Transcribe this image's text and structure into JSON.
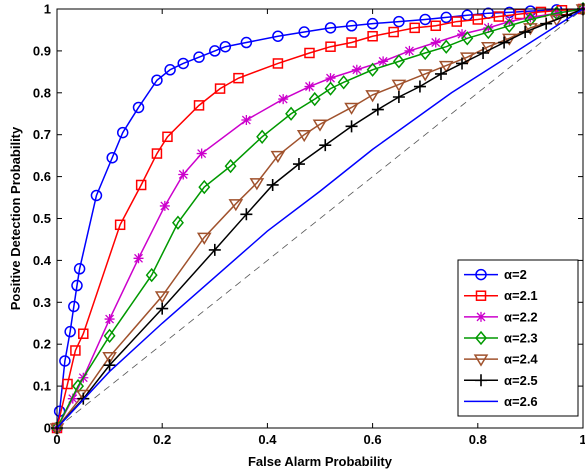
{
  "chart_data": {
    "type": "line",
    "title": "",
    "xlabel": "False Alarm Probability",
    "ylabel": "Positive Detection Probability",
    "xlim": [
      0,
      1
    ],
    "ylim": [
      0,
      1
    ],
    "x_ticks": [
      "0",
      "0.2",
      "0.4",
      "0.6",
      "0.8",
      "1"
    ],
    "y_ticks": [
      "0",
      "0.1",
      "0.2",
      "0.3",
      "0.4",
      "0.5",
      "0.6",
      "0.7",
      "0.8",
      "0.9",
      "1"
    ],
    "grid": false,
    "legend_position": "bottom-right",
    "reference_line": {
      "style": "dashed",
      "color": "#555555",
      "points": [
        [
          0,
          0
        ],
        [
          1,
          1
        ]
      ]
    },
    "series": [
      {
        "name": "α=2",
        "color": "#0000ff",
        "marker": "circle",
        "points": [
          [
            0,
            0
          ],
          [
            0.005,
            0.04
          ],
          [
            0.015,
            0.16
          ],
          [
            0.025,
            0.23
          ],
          [
            0.032,
            0.29
          ],
          [
            0.038,
            0.34
          ],
          [
            0.043,
            0.38
          ],
          [
            0.075,
            0.555
          ],
          [
            0.105,
            0.645
          ],
          [
            0.125,
            0.705
          ],
          [
            0.155,
            0.765
          ],
          [
            0.19,
            0.83
          ],
          [
            0.215,
            0.855
          ],
          [
            0.24,
            0.87
          ],
          [
            0.27,
            0.885
          ],
          [
            0.3,
            0.9
          ],
          [
            0.32,
            0.91
          ],
          [
            0.36,
            0.92
          ],
          [
            0.42,
            0.935
          ],
          [
            0.47,
            0.945
          ],
          [
            0.52,
            0.955
          ],
          [
            0.56,
            0.96
          ],
          [
            0.6,
            0.965
          ],
          [
            0.65,
            0.97
          ],
          [
            0.7,
            0.975
          ],
          [
            0.74,
            0.98
          ],
          [
            0.78,
            0.985
          ],
          [
            0.82,
            0.99
          ],
          [
            0.86,
            0.992
          ],
          [
            0.9,
            0.995
          ],
          [
            0.95,
            0.998
          ],
          [
            1,
            1
          ]
        ]
      },
      {
        "name": "α=2.1",
        "color": "#ff0000",
        "marker": "square",
        "points": [
          [
            0,
            0
          ],
          [
            0.02,
            0.105
          ],
          [
            0.035,
            0.185
          ],
          [
            0.05,
            0.225
          ],
          [
            0.12,
            0.485
          ],
          [
            0.16,
            0.58
          ],
          [
            0.19,
            0.655
          ],
          [
            0.21,
            0.695
          ],
          [
            0.27,
            0.77
          ],
          [
            0.31,
            0.81
          ],
          [
            0.345,
            0.835
          ],
          [
            0.42,
            0.87
          ],
          [
            0.48,
            0.895
          ],
          [
            0.52,
            0.91
          ],
          [
            0.56,
            0.92
          ],
          [
            0.6,
            0.935
          ],
          [
            0.64,
            0.945
          ],
          [
            0.68,
            0.955
          ],
          [
            0.72,
            0.96
          ],
          [
            0.76,
            0.97
          ],
          [
            0.8,
            0.975
          ],
          [
            0.84,
            0.982
          ],
          [
            0.88,
            0.988
          ],
          [
            0.92,
            0.993
          ],
          [
            0.96,
            0.997
          ],
          [
            1,
            1
          ]
        ]
      },
      {
        "name": "α=2.2",
        "color": "#cc00cc",
        "marker": "star",
        "points": [
          [
            0,
            0
          ],
          [
            0.03,
            0.07
          ],
          [
            0.05,
            0.12
          ],
          [
            0.1,
            0.26
          ],
          [
            0.155,
            0.405
          ],
          [
            0.205,
            0.53
          ],
          [
            0.24,
            0.605
          ],
          [
            0.275,
            0.655
          ],
          [
            0.36,
            0.735
          ],
          [
            0.43,
            0.785
          ],
          [
            0.48,
            0.815
          ],
          [
            0.52,
            0.835
          ],
          [
            0.57,
            0.855
          ],
          [
            0.62,
            0.875
          ],
          [
            0.67,
            0.9
          ],
          [
            0.72,
            0.92
          ],
          [
            0.77,
            0.94
          ],
          [
            0.82,
            0.955
          ],
          [
            0.86,
            0.97
          ],
          [
            0.9,
            0.98
          ],
          [
            0.95,
            0.99
          ],
          [
            1,
            1
          ]
        ]
      },
      {
        "name": "α=2.3",
        "color": "#009900",
        "marker": "diamond",
        "points": [
          [
            0,
            0
          ],
          [
            0.04,
            0.1
          ],
          [
            0.1,
            0.22
          ],
          [
            0.18,
            0.365
          ],
          [
            0.23,
            0.49
          ],
          [
            0.28,
            0.575
          ],
          [
            0.33,
            0.625
          ],
          [
            0.39,
            0.695
          ],
          [
            0.445,
            0.75
          ],
          [
            0.49,
            0.785
          ],
          [
            0.52,
            0.81
          ],
          [
            0.545,
            0.825
          ],
          [
            0.6,
            0.855
          ],
          [
            0.65,
            0.875
          ],
          [
            0.7,
            0.895
          ],
          [
            0.74,
            0.91
          ],
          [
            0.78,
            0.93
          ],
          [
            0.82,
            0.945
          ],
          [
            0.86,
            0.96
          ],
          [
            0.9,
            0.975
          ],
          [
            0.95,
            0.99
          ],
          [
            1,
            1
          ]
        ]
      },
      {
        "name": "α=2.4",
        "color": "#a0522d",
        "marker": "triangle-down",
        "points": [
          [
            0,
            0
          ],
          [
            0.05,
            0.08
          ],
          [
            0.1,
            0.17
          ],
          [
            0.2,
            0.315
          ],
          [
            0.28,
            0.455
          ],
          [
            0.34,
            0.535
          ],
          [
            0.38,
            0.585
          ],
          [
            0.42,
            0.65
          ],
          [
            0.47,
            0.7
          ],
          [
            0.5,
            0.725
          ],
          [
            0.56,
            0.765
          ],
          [
            0.6,
            0.795
          ],
          [
            0.65,
            0.82
          ],
          [
            0.7,
            0.845
          ],
          [
            0.74,
            0.865
          ],
          [
            0.78,
            0.885
          ],
          [
            0.82,
            0.91
          ],
          [
            0.86,
            0.93
          ],
          [
            0.9,
            0.955
          ],
          [
            0.95,
            0.975
          ],
          [
            1,
            1
          ]
        ]
      },
      {
        "name": "α=2.5",
        "color": "#000000",
        "marker": "plus",
        "points": [
          [
            0,
            0
          ],
          [
            0.05,
            0.07
          ],
          [
            0.1,
            0.15
          ],
          [
            0.2,
            0.285
          ],
          [
            0.3,
            0.425
          ],
          [
            0.36,
            0.51
          ],
          [
            0.41,
            0.58
          ],
          [
            0.46,
            0.63
          ],
          [
            0.51,
            0.675
          ],
          [
            0.56,
            0.72
          ],
          [
            0.61,
            0.76
          ],
          [
            0.65,
            0.79
          ],
          [
            0.69,
            0.815
          ],
          [
            0.73,
            0.845
          ],
          [
            0.77,
            0.87
          ],
          [
            0.81,
            0.895
          ],
          [
            0.85,
            0.92
          ],
          [
            0.89,
            0.945
          ],
          [
            0.93,
            0.965
          ],
          [
            0.97,
            0.985
          ],
          [
            1,
            1
          ]
        ]
      },
      {
        "name": "α=2.6",
        "color": "#0000ff",
        "marker": "none",
        "points": [
          [
            0,
            0
          ],
          [
            0.1,
            0.135
          ],
          [
            0.2,
            0.25
          ],
          [
            0.3,
            0.36
          ],
          [
            0.4,
            0.47
          ],
          [
            0.5,
            0.565
          ],
          [
            0.6,
            0.665
          ],
          [
            0.7,
            0.755
          ],
          [
            0.75,
            0.8
          ],
          [
            0.8,
            0.84
          ],
          [
            0.85,
            0.88
          ],
          [
            0.9,
            0.92
          ],
          [
            0.95,
            0.96
          ],
          [
            1,
            1
          ]
        ]
      }
    ]
  }
}
